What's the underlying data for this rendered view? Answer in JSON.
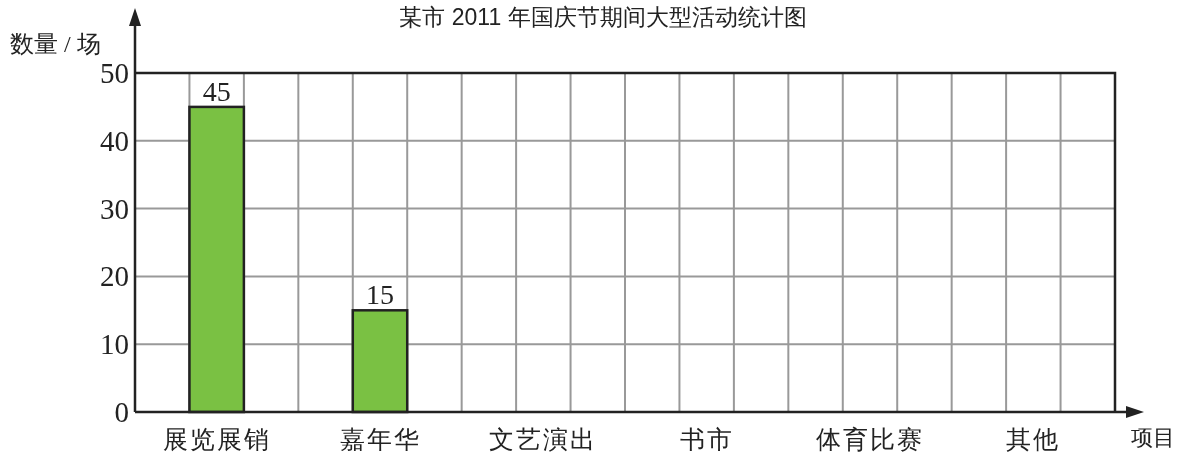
{
  "chart_data": {
    "type": "bar",
    "title": "某市 2011 年国庆节期间大型活动统计图",
    "xlabel": "项目",
    "ylabel": "数量 / 场",
    "categories": [
      "展览展销",
      "嘉年华",
      "文艺演出",
      "书市",
      "体育比赛",
      "其他"
    ],
    "values": [
      45,
      15,
      null,
      null,
      null,
      null
    ],
    "color": "#7ac143",
    "ylim": [
      0,
      50
    ],
    "yticks": [
      0,
      10,
      20,
      30,
      40,
      50
    ],
    "grid": true,
    "data_labels": true
  }
}
